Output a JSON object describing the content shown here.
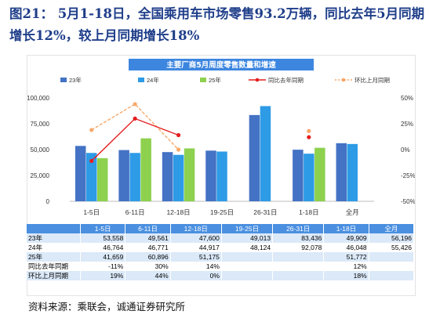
{
  "figure": {
    "title": "图21： 5月1-18日，全国乘用车市场零售93.2万辆，同比去年5月同期增长12%，较上月同期增长18%",
    "source": "资料来源：乘联会，诚通证券研究所"
  },
  "colors": {
    "s23": "#4472c4",
    "s24": "#2e9be6",
    "s25": "#8dd14e",
    "yoy": "#e61e1e",
    "mom": "#f7a86a",
    "header_bg": "#4a8fe0",
    "title_bg": "#3d86e0"
  },
  "chart_data": {
    "type": "bar",
    "title": "主要厂商5月周度零售数量和增速",
    "categories": [
      "1-5日",
      "6-11日",
      "12-18日",
      "19-25日",
      "26-31日",
      "1-18日",
      "全月"
    ],
    "series": [
      {
        "name": "23年",
        "axis": "left",
        "values": [
          53558,
          49561,
          47600,
          49013,
          83436,
          49909,
          56196
        ]
      },
      {
        "name": "24年",
        "axis": "left",
        "values": [
          46764,
          46771,
          44917,
          48124,
          92078,
          46048,
          55426
        ]
      },
      {
        "name": "25年",
        "axis": "left",
        "values": [
          41659,
          60896,
          51175,
          null,
          null,
          51772,
          null
        ]
      },
      {
        "name": "同比去年同期",
        "type": "line",
        "axis": "right",
        "values": [
          -11,
          30,
          14,
          null,
          null,
          12,
          null
        ]
      },
      {
        "name": "环比上月同期",
        "type": "line",
        "axis": "right",
        "values": [
          19,
          44,
          0,
          null,
          null,
          18,
          null
        ]
      }
    ],
    "y_left": {
      "ylim": [
        0,
        100000
      ],
      "ticks": [
        "0",
        "25,000",
        "50,000",
        "75,000",
        "100,000"
      ]
    },
    "y_right": {
      "ylim": [
        -50,
        50
      ],
      "ticks": [
        "-50%",
        "-25%",
        "0%",
        "25%",
        "50%"
      ]
    },
    "legend": "top",
    "table": {
      "rows": [
        {
          "label": "23年",
          "cells": [
            "53,558",
            "49,561",
            "47,600",
            "49,013",
            "83,436",
            "49,909",
            "56,196"
          ]
        },
        {
          "label": "24年",
          "cells": [
            "46,764",
            "46,771",
            "44,917",
            "48,124",
            "92,078",
            "46,048",
            "55,426"
          ]
        },
        {
          "label": "25年",
          "cells": [
            "41,659",
            "60,896",
            "51,175",
            "",
            "",
            "51,772",
            ""
          ]
        },
        {
          "label": "同比去年同期",
          "cells": [
            "-11%",
            "30%",
            "14%",
            "",
            "",
            "12%",
            ""
          ]
        },
        {
          "label": "环比上月同期",
          "cells": [
            "19%",
            "44%",
            "0%",
            "",
            "",
            "18%",
            ""
          ]
        }
      ]
    }
  }
}
